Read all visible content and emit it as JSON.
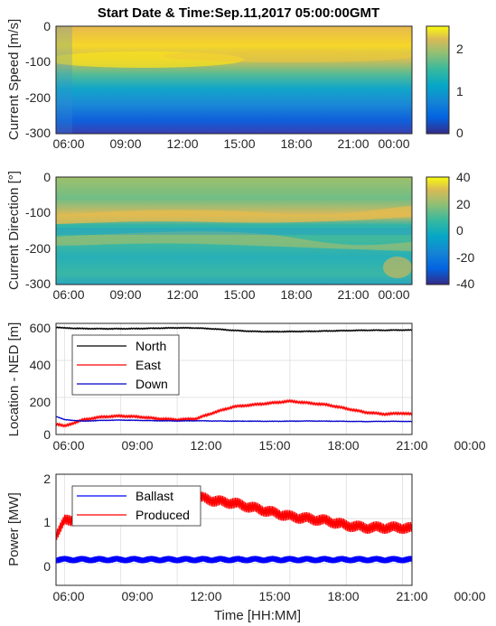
{
  "title": "Start Date & Time:Sep.11,2017 05:00:00GMT",
  "chart_data": [
    {
      "type": "heatmap",
      "ylabel": "Current Speed [m/s]",
      "xticks": [
        "06:00",
        "09:00",
        "12:00",
        "15:00",
        "18:00",
        "21:00",
        "00:00"
      ],
      "yticks": [
        "0",
        "-100",
        "-200",
        "-300"
      ],
      "ylim": [
        -300,
        0
      ],
      "colorbar": {
        "ticks": [
          "0",
          "1",
          "2"
        ],
        "range": [
          0,
          2.5
        ]
      },
      "description_values": {
        "near_surface_max": 2.4,
        "deep_min": 0.3
      }
    },
    {
      "type": "heatmap",
      "ylabel": "Current Direction [°]",
      "xticks": [
        "06:00",
        "09:00",
        "12:00",
        "15:00",
        "18:00",
        "21:00",
        "00:00"
      ],
      "yticks": [
        "0",
        "-100",
        "-200",
        "-300"
      ],
      "ylim": [
        -300,
        0
      ],
      "colorbar": {
        "ticks": [
          "40",
          "20",
          "0",
          "-20",
          "-40"
        ],
        "range": [
          -40,
          40
        ]
      }
    },
    {
      "type": "line",
      "ylabel": "Location - NED [m]",
      "xticks": [
        "06:00",
        "09:00",
        "12:00",
        "15:00",
        "18:00",
        "21:00",
        "00:00"
      ],
      "yticks": [
        "600",
        "400",
        "200",
        "0"
      ],
      "ylim": [
        0,
        600
      ],
      "grid": true,
      "legend": "top-left",
      "x_hours": [
        5.5,
        6.0,
        7.0,
        8.0,
        9.0,
        10.0,
        11.0,
        12.0,
        13.0,
        14.0,
        15.0,
        16.0,
        17.0,
        18.0,
        19.0,
        20.0,
        21.0,
        22.0,
        23.0,
        24.0,
        24.5
      ],
      "series": [
        {
          "name": "North",
          "color": "#000000",
          "values": [
            580,
            575,
            572,
            571,
            571,
            572,
            574,
            576,
            575,
            570,
            562,
            557,
            555,
            556,
            557,
            559,
            561,
            563,
            563,
            564,
            564
          ]
        },
        {
          "name": "East",
          "color": "#ff0000",
          "values": [
            60,
            45,
            80,
            95,
            100,
            95,
            85,
            80,
            85,
            120,
            150,
            160,
            170,
            180,
            170,
            160,
            140,
            120,
            110,
            115,
            110
          ]
        },
        {
          "name": "Down",
          "color": "#0000cc",
          "values": [
            100,
            80,
            72,
            76,
            78,
            76,
            74,
            73,
            74,
            73,
            72,
            72,
            71,
            72,
            73,
            72,
            71,
            70,
            71,
            71,
            70
          ]
        }
      ]
    },
    {
      "type": "line",
      "ylabel": "Power [MW]",
      "xlabel": "Time [HH:MM]",
      "xticks": [
        "06:00",
        "09:00",
        "12:00",
        "15:00",
        "18:00",
        "21:00",
        "00:00"
      ],
      "yticks": [
        "2",
        "1",
        "0"
      ],
      "ylim": [
        -0.5,
        2
      ],
      "grid": true,
      "legend": "top-left",
      "x_hours": [
        5.5,
        6.0,
        7.0,
        8.0,
        9.0,
        10.0,
        11.0,
        12.0,
        13.0,
        14.0,
        15.0,
        16.0,
        17.0,
        18.0,
        19.0,
        20.0,
        21.0,
        22.0,
        23.0,
        24.0,
        24.5
      ],
      "series": [
        {
          "name": "Ballast",
          "color": "#0000ff",
          "values": [
            0.08,
            0.08,
            0.08,
            0.08,
            0.08,
            0.08,
            0.08,
            0.08,
            0.08,
            0.08,
            0.08,
            0.08,
            0.08,
            0.08,
            0.08,
            0.08,
            0.08,
            0.08,
            0.08,
            0.08,
            0.08
          ]
        },
        {
          "name": "Produced",
          "color": "#ff0000",
          "values": [
            0.6,
            0.95,
            1.0,
            1.05,
            1.2,
            1.3,
            1.4,
            1.55,
            1.5,
            1.4,
            1.35,
            1.25,
            1.15,
            1.05,
            1.0,
            0.95,
            0.85,
            0.8,
            0.8,
            0.8,
            0.78
          ]
        }
      ]
    }
  ]
}
